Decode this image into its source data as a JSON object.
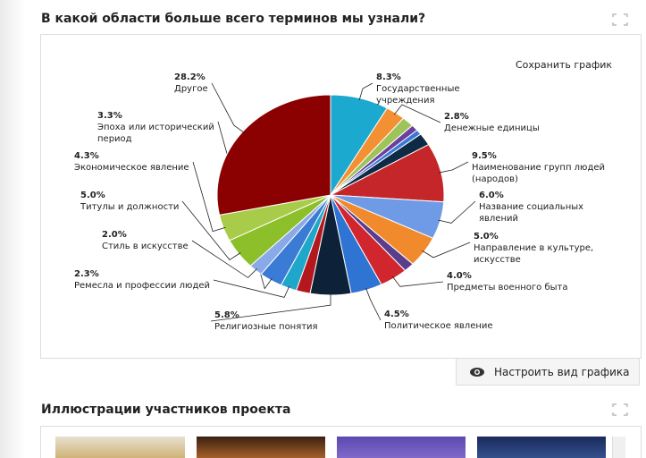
{
  "ui": {
    "heading": "В какой области больше всего терминов мы узнали?",
    "save": "Сохранить график",
    "configure": "Настроить вид графика",
    "heading2": "Иллюстрации участников проекта"
  },
  "chart_data": {
    "type": "pie",
    "categories": [
      "Государственные\nучреждения",
      "Денежные единицы",
      null,
      null,
      null,
      null,
      "Наименование групп людей\n(народов)",
      "Название социальных\nявлений",
      "Направление в культуре,\nискусстве",
      null,
      "Предметы военного быта",
      "Политическое явление",
      "Религиозные понятия",
      null,
      "Ремесла и профессии людей",
      "Эпоха или исторический\nпериод",
      "Стиль в искусстве",
      "Титулы и должности",
      "Экономическое явление",
      "Другое"
    ],
    "values": [
      8.3,
      2.8,
      1.7,
      1.0,
      0.8,
      2.0,
      9.5,
      6.0,
      5.0,
      1.5,
      4.0,
      4.5,
      5.8,
      2.0,
      2.3,
      3.3,
      2.0,
      5.0,
      4.3,
      28.2
    ],
    "value_labels": [
      "8.3%",
      "2.8%",
      null,
      null,
      null,
      null,
      "9.5%",
      "6.0%",
      "5.0%",
      null,
      "4.0%",
      "4.5%",
      "5.8%",
      null,
      "2.3%",
      "3.3%",
      "2.0%",
      "5.0%",
      "4.3%",
      "28.2%"
    ],
    "colors": [
      "#1ba9cf",
      "#f39034",
      "#9dc45a",
      "#6b3fa0",
      "#3a78d6",
      "#0e2a45",
      "#c4262a",
      "#6f9be6",
      "#f08a2c",
      "#5a3d8c",
      "#d1262e",
      "#2f74d3",
      "#0d2238",
      "#b2181d",
      "#1fa7c9",
      "#3a7bd5",
      "#8aa9e8",
      "#8cbf2a",
      "#a8cc4a",
      "#8b0000"
    ]
  }
}
